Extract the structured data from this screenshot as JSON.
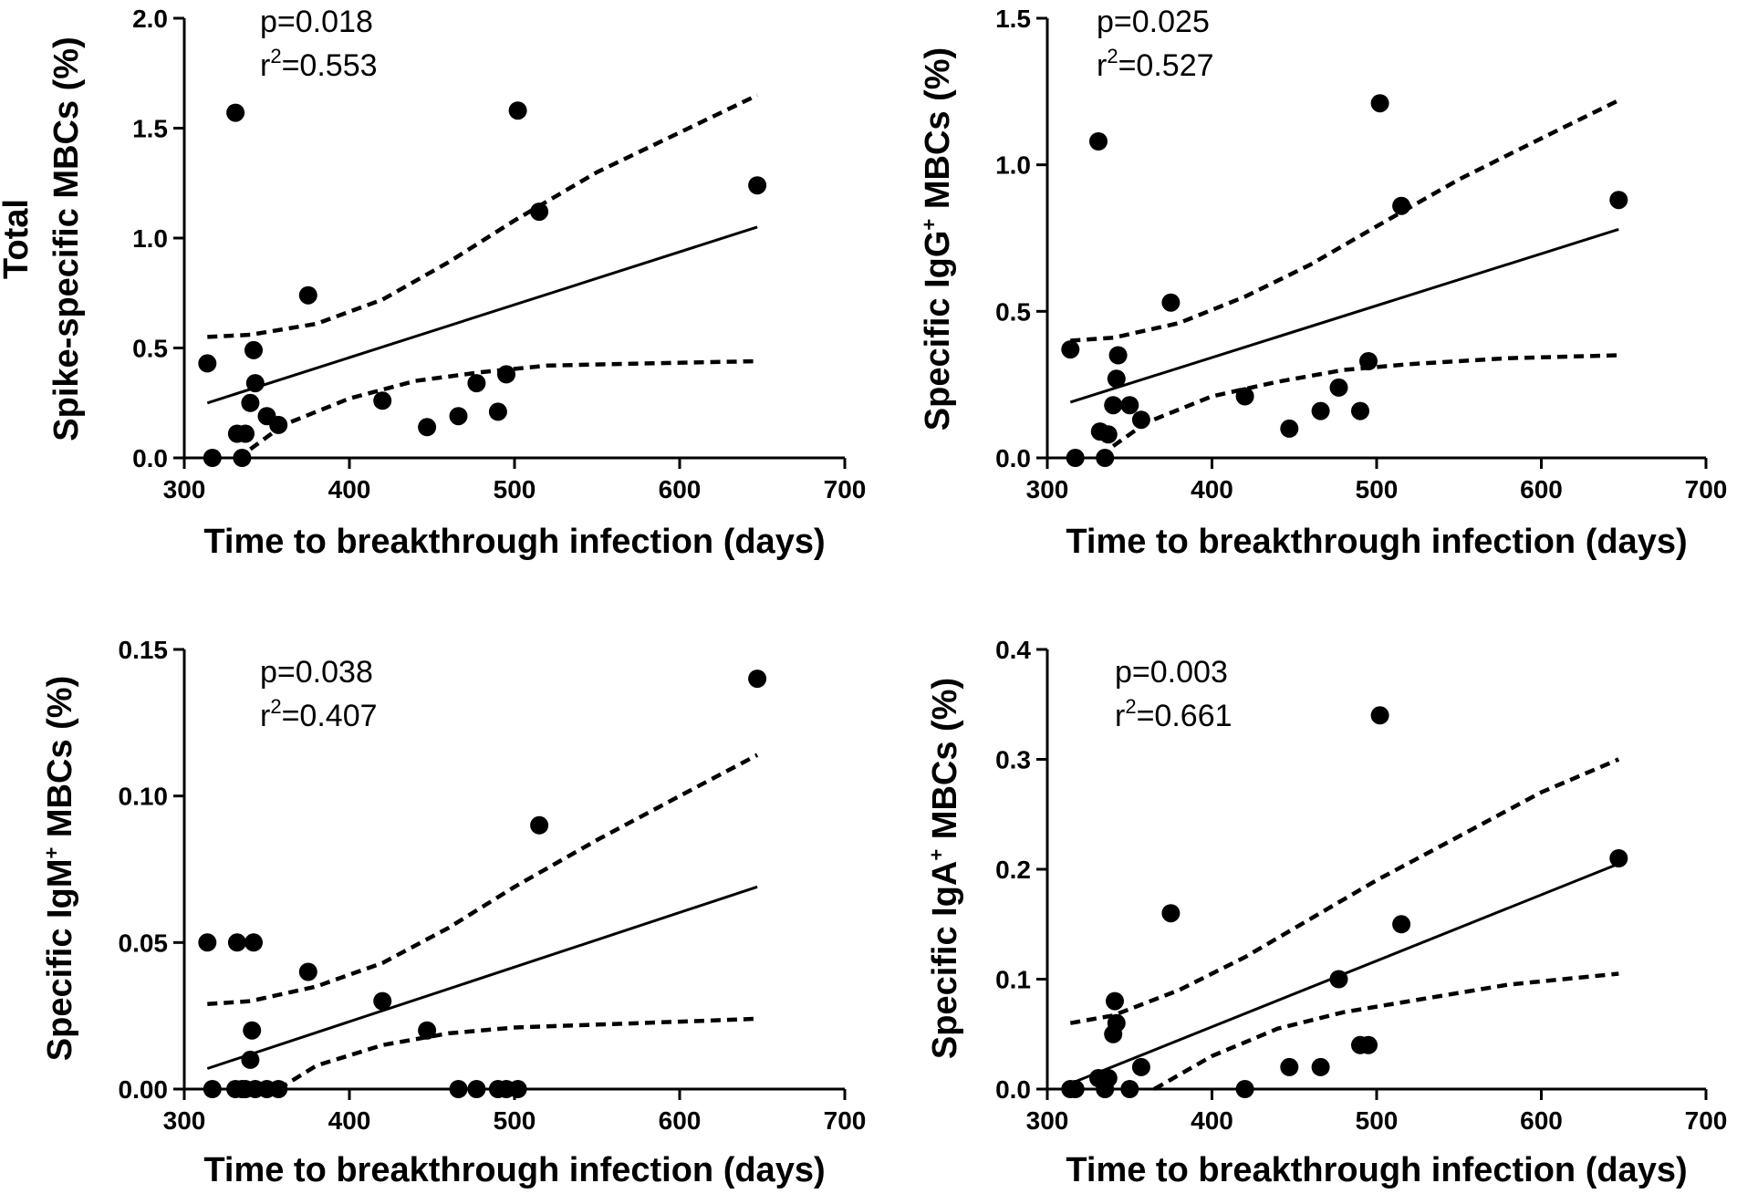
{
  "chart_data": [
    {
      "type": "scatter",
      "id": "total",
      "xlabel": "Time to breakthrough infection (days)",
      "ylabel_line1": "Total",
      "ylabel_parts": [
        "Spike-specific MBCs (%)"
      ],
      "xlim": [
        300,
        700
      ],
      "ylim": [
        0,
        2.0
      ],
      "xticks": [
        300,
        400,
        500,
        600,
        700
      ],
      "yticks": [
        0,
        0.5,
        1.0,
        1.5,
        2.0
      ],
      "ytick_labels": [
        "0.0",
        "0.5",
        "1.0",
        "1.5",
        "2.0"
      ],
      "p_text": "p=0.018",
      "r2_value": "=0.553",
      "points": [
        [
          314,
          0.43
        ],
        [
          317,
          0.0
        ],
        [
          331,
          1.57
        ],
        [
          332,
          0.11
        ],
        [
          335,
          0.0
        ],
        [
          337,
          0.11
        ],
        [
          340,
          0.25
        ],
        [
          342,
          0.49
        ],
        [
          343,
          0.34
        ],
        [
          350,
          0.19
        ],
        [
          357,
          0.15
        ],
        [
          375,
          0.74
        ],
        [
          420,
          0.26
        ],
        [
          447,
          0.14
        ],
        [
          466,
          0.19
        ],
        [
          477,
          0.34
        ],
        [
          490,
          0.21
        ],
        [
          495,
          0.38
        ],
        [
          502,
          1.58
        ],
        [
          515,
          1.12
        ],
        [
          647,
          1.24
        ]
      ],
      "fit": [
        [
          314,
          0.25
        ],
        [
          647,
          1.05
        ]
      ],
      "ci_upper": [
        [
          314,
          0.55
        ],
        [
          340,
          0.56
        ],
        [
          380,
          0.61
        ],
        [
          420,
          0.72
        ],
        [
          460,
          0.89
        ],
        [
          500,
          1.08
        ],
        [
          550,
          1.3
        ],
        [
          600,
          1.48
        ],
        [
          647,
          1.65
        ]
      ],
      "ci_lower": [
        [
          340,
          0.04
        ],
        [
          360,
          0.15
        ],
        [
          400,
          0.27
        ],
        [
          440,
          0.35
        ],
        [
          480,
          0.39
        ],
        [
          520,
          0.42
        ],
        [
          580,
          0.43
        ],
        [
          647,
          0.44
        ]
      ]
    },
    {
      "type": "scatter",
      "id": "igg",
      "xlabel": "Time to breakthrough infection (days)",
      "ylabel_line1": "",
      "ylabel_parts": [
        "Specific IgG",
        "+",
        "  MBCs (%)"
      ],
      "xlim": [
        300,
        700
      ],
      "ylim": [
        0,
        1.5
      ],
      "xticks": [
        300,
        400,
        500,
        600,
        700
      ],
      "yticks": [
        0,
        0.5,
        1.0,
        1.5
      ],
      "ytick_labels": [
        "0.0",
        "0.5",
        "1.0",
        "1.5"
      ],
      "p_text": "p=0.025",
      "r2_value": "=0.527",
      "points": [
        [
          314,
          0.37
        ],
        [
          317,
          0.0
        ],
        [
          331,
          1.08
        ],
        [
          332,
          0.09
        ],
        [
          335,
          0.0
        ],
        [
          337,
          0.08
        ],
        [
          340,
          0.18
        ],
        [
          342,
          0.27
        ],
        [
          343,
          0.35
        ],
        [
          350,
          0.18
        ],
        [
          357,
          0.13
        ],
        [
          375,
          0.53
        ],
        [
          420,
          0.21
        ],
        [
          447,
          0.1
        ],
        [
          466,
          0.16
        ],
        [
          477,
          0.24
        ],
        [
          490,
          0.16
        ],
        [
          495,
          0.33
        ],
        [
          502,
          1.21
        ],
        [
          515,
          0.86
        ],
        [
          647,
          0.88
        ]
      ],
      "fit": [
        [
          314,
          0.19
        ],
        [
          647,
          0.78
        ]
      ],
      "ci_upper": [
        [
          314,
          0.4
        ],
        [
          340,
          0.41
        ],
        [
          380,
          0.46
        ],
        [
          420,
          0.55
        ],
        [
          460,
          0.66
        ],
        [
          500,
          0.79
        ],
        [
          550,
          0.95
        ],
        [
          600,
          1.09
        ],
        [
          647,
          1.22
        ]
      ],
      "ci_lower": [
        [
          340,
          0.04
        ],
        [
          360,
          0.12
        ],
        [
          400,
          0.21
        ],
        [
          440,
          0.26
        ],
        [
          480,
          0.3
        ],
        [
          520,
          0.32
        ],
        [
          580,
          0.34
        ],
        [
          647,
          0.35
        ]
      ]
    },
    {
      "type": "scatter",
      "id": "igm",
      "xlabel": "Time to breakthrough infection (days)",
      "ylabel_line1": "",
      "ylabel_parts": [
        "Specific IgM",
        "+",
        "  MBCs (%)"
      ],
      "xlim": [
        300,
        700
      ],
      "ylim": [
        0,
        0.15
      ],
      "xticks": [
        300,
        400,
        500,
        600,
        700
      ],
      "yticks": [
        0,
        0.05,
        0.1,
        0.15
      ],
      "ytick_labels": [
        "0.00",
        "0.05",
        "0.10",
        "0.15"
      ],
      "p_text": "p=0.038",
      "r2_value": "=0.407",
      "points": [
        [
          314,
          0.05
        ],
        [
          317,
          0.0
        ],
        [
          331,
          0.0
        ],
        [
          332,
          0.05
        ],
        [
          335,
          0.0
        ],
        [
          337,
          0.0
        ],
        [
          340,
          0.01
        ],
        [
          341,
          0.02
        ],
        [
          342,
          0.05
        ],
        [
          343,
          0.0
        ],
        [
          350,
          0.0
        ],
        [
          357,
          0.0
        ],
        [
          375,
          0.04
        ],
        [
          420,
          0.03
        ],
        [
          447,
          0.02
        ],
        [
          466,
          0.0
        ],
        [
          477,
          0.0
        ],
        [
          490,
          0.0
        ],
        [
          495,
          0.0
        ],
        [
          502,
          0.0
        ],
        [
          515,
          0.09
        ],
        [
          647,
          0.14
        ]
      ],
      "fit": [
        [
          314,
          0.007
        ],
        [
          647,
          0.069
        ]
      ],
      "ci_upper": [
        [
          314,
          0.029
        ],
        [
          340,
          0.03
        ],
        [
          380,
          0.035
        ],
        [
          420,
          0.043
        ],
        [
          460,
          0.055
        ],
        [
          500,
          0.069
        ],
        [
          550,
          0.085
        ],
        [
          600,
          0.1
        ],
        [
          647,
          0.114
        ]
      ],
      "ci_lower": [
        [
          357,
          0.0
        ],
        [
          380,
          0.008
        ],
        [
          420,
          0.015
        ],
        [
          460,
          0.019
        ],
        [
          500,
          0.021
        ],
        [
          550,
          0.022
        ],
        [
          600,
          0.023
        ],
        [
          647,
          0.024
        ]
      ]
    },
    {
      "type": "scatter",
      "id": "iga",
      "xlabel": "Time to breakthrough infection (days)",
      "ylabel_line1": "",
      "ylabel_parts": [
        "Specific IgA",
        "+",
        "  MBCs (%)"
      ],
      "xlim": [
        300,
        700
      ],
      "ylim": [
        0,
        0.4
      ],
      "xticks": [
        300,
        400,
        500,
        600,
        700
      ],
      "yticks": [
        0,
        0.1,
        0.2,
        0.3,
        0.4
      ],
      "ytick_labels": [
        "0.0",
        "0.1",
        "0.2",
        "0.3",
        "0.4"
      ],
      "p_text": "p=0.003",
      "r2_value": "=0.661",
      "points": [
        [
          314,
          0.0
        ],
        [
          317,
          0.0
        ],
        [
          331,
          0.01
        ],
        [
          335,
          0.0
        ],
        [
          337,
          0.01
        ],
        [
          340,
          0.05
        ],
        [
          341,
          0.08
        ],
        [
          342,
          0.06
        ],
        [
          350,
          0.0
        ],
        [
          357,
          0.02
        ],
        [
          375,
          0.16
        ],
        [
          420,
          0.0
        ],
        [
          447,
          0.02
        ],
        [
          466,
          0.02
        ],
        [
          477,
          0.1
        ],
        [
          490,
          0.04
        ],
        [
          495,
          0.04
        ],
        [
          502,
          0.34
        ],
        [
          515,
          0.15
        ],
        [
          647,
          0.21
        ]
      ],
      "fit": [
        [
          314,
          0.005
        ],
        [
          647,
          0.205
        ]
      ],
      "ci_upper": [
        [
          314,
          0.06
        ],
        [
          340,
          0.067
        ],
        [
          380,
          0.09
        ],
        [
          420,
          0.12
        ],
        [
          460,
          0.155
        ],
        [
          500,
          0.19
        ],
        [
          550,
          0.23
        ],
        [
          600,
          0.27
        ],
        [
          647,
          0.3
        ]
      ],
      "ci_lower": [
        [
          365,
          0.0
        ],
        [
          400,
          0.03
        ],
        [
          440,
          0.055
        ],
        [
          480,
          0.07
        ],
        [
          520,
          0.08
        ],
        [
          580,
          0.095
        ],
        [
          647,
          0.105
        ]
      ]
    }
  ]
}
